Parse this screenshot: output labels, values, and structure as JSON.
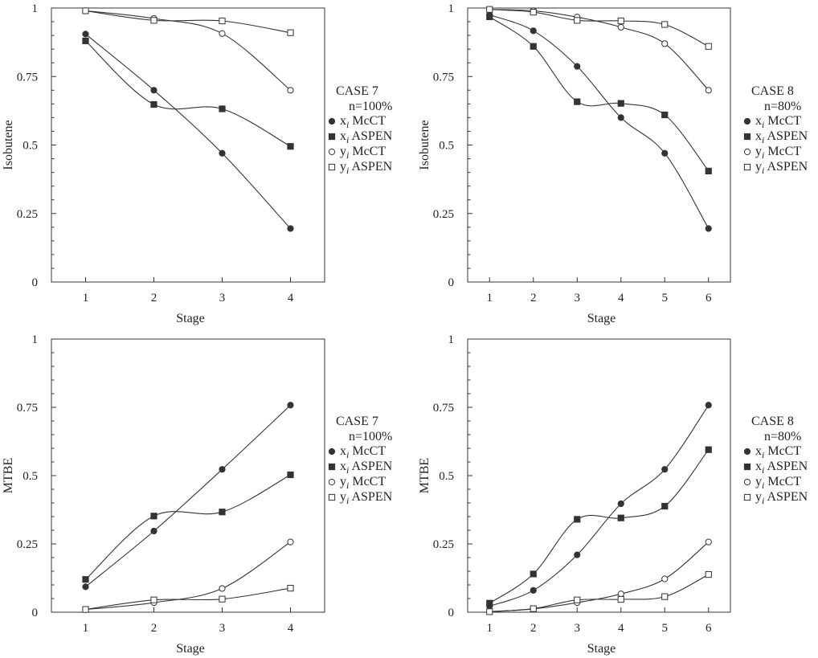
{
  "chart_data": [
    {
      "type": "line",
      "panel": "case7-isobutene",
      "xlabel": "Stage",
      "ylabel": "Isobutene",
      "x": [
        1,
        2,
        3,
        4
      ],
      "xlim": [
        0.5,
        4.5
      ],
      "ylim": [
        0,
        1
      ],
      "yticks": [
        {
          "v": 0,
          "label": "0"
        },
        {
          "v": 0.25,
          "label": "0.25"
        },
        {
          "v": 0.5,
          "label": "0.5"
        },
        {
          "v": 0.75,
          "label": "0.75"
        },
        {
          "v": 1,
          "label": "1"
        }
      ],
      "legend_title": [
        "CASE 7",
        "n=100%"
      ],
      "series": [
        {
          "name": "x_i McCT",
          "var": "x",
          "sub": "i",
          "method": "McCT",
          "marker": "circle-filled",
          "values": [
            0.905,
            0.7,
            0.47,
            0.195
          ]
        },
        {
          "name": "x_i ASPEN",
          "var": "x",
          "sub": "i",
          "method": "ASPEN",
          "marker": "square-filled",
          "values": [
            0.88,
            0.648,
            0.632,
            0.495
          ]
        },
        {
          "name": "y_i McCT",
          "var": "y",
          "sub": "i",
          "method": "McCT",
          "marker": "circle-open",
          "values": [
            0.99,
            0.962,
            0.907,
            0.7
          ]
        },
        {
          "name": "y_i ASPEN",
          "var": "y",
          "sub": "i",
          "method": "ASPEN",
          "marker": "square-open",
          "values": [
            0.99,
            0.955,
            0.953,
            0.91
          ]
        }
      ]
    },
    {
      "type": "line",
      "panel": "case8-isobutene",
      "xlabel": "Stage",
      "ylabel": "Isobutene",
      "x": [
        1,
        2,
        3,
        4,
        5,
        6
      ],
      "xlim": [
        0.5,
        6.5
      ],
      "ylim": [
        0,
        1
      ],
      "yticks": [
        {
          "v": 0,
          "label": "0"
        },
        {
          "v": 0.25,
          "label": "0.25"
        },
        {
          "v": 0.5,
          "label": "0.5"
        },
        {
          "v": 0.75,
          "label": "0.75"
        },
        {
          "v": 1,
          "label": "1"
        }
      ],
      "legend_title": [
        "CASE 8",
        "n=80%"
      ],
      "series": [
        {
          "name": "x_i McCT",
          "var": "x",
          "sub": "i",
          "method": "McCT",
          "marker": "circle-filled",
          "values": [
            0.975,
            0.917,
            0.787,
            0.6,
            0.47,
            0.195
          ]
        },
        {
          "name": "x_i ASPEN",
          "var": "x",
          "sub": "i",
          "method": "ASPEN",
          "marker": "square-filled",
          "values": [
            0.968,
            0.86,
            0.658,
            0.652,
            0.61,
            0.405
          ]
        },
        {
          "name": "y_i McCT",
          "var": "y",
          "sub": "i",
          "method": "McCT",
          "marker": "circle-open",
          "values": [
            0.995,
            0.99,
            0.967,
            0.93,
            0.87,
            0.7
          ]
        },
        {
          "name": "y_i ASPEN",
          "var": "y",
          "sub": "i",
          "method": "ASPEN",
          "marker": "square-open",
          "values": [
            0.995,
            0.985,
            0.955,
            0.953,
            0.94,
            0.86
          ]
        }
      ]
    },
    {
      "type": "line",
      "panel": "case7-mtbe",
      "xlabel": "Stage",
      "ylabel": "MTBE",
      "x": [
        1,
        2,
        3,
        4
      ],
      "xlim": [
        0.5,
        4.5
      ],
      "ylim": [
        0,
        1
      ],
      "yticks": [
        {
          "v": 0,
          "label": "0"
        },
        {
          "v": 0.25,
          "label": "0.25"
        },
        {
          "v": 0.5,
          "label": "0.5"
        },
        {
          "v": 0.75,
          "label": "0.75"
        },
        {
          "v": 1,
          "label": "1"
        }
      ],
      "legend_title": [
        "CASE 7",
        "n=100%"
      ],
      "series": [
        {
          "name": "x_i McCT",
          "var": "x",
          "sub": "i",
          "method": "McCT",
          "marker": "circle-filled",
          "values": [
            0.093,
            0.297,
            0.523,
            0.758
          ]
        },
        {
          "name": "x_i ASPEN",
          "var": "x",
          "sub": "i",
          "method": "ASPEN",
          "marker": "square-filled",
          "values": [
            0.12,
            0.352,
            0.367,
            0.503
          ]
        },
        {
          "name": "y_i McCT",
          "var": "y",
          "sub": "i",
          "method": "McCT",
          "marker": "circle-open",
          "values": [
            0.01,
            0.035,
            0.087,
            0.257
          ]
        },
        {
          "name": "y_i ASPEN",
          "var": "y",
          "sub": "i",
          "method": "ASPEN",
          "marker": "square-open",
          "values": [
            0.01,
            0.045,
            0.048,
            0.088
          ]
        }
      ]
    },
    {
      "type": "line",
      "panel": "case8-mtbe",
      "xlabel": "Stage",
      "ylabel": "MTBE",
      "x": [
        1,
        2,
        3,
        4,
        5,
        6
      ],
      "xlim": [
        0.5,
        6.5
      ],
      "ylim": [
        0,
        1
      ],
      "yticks": [
        {
          "v": 0,
          "label": "0"
        },
        {
          "v": 0.25,
          "label": "0.25"
        },
        {
          "v": 0.5,
          "label": "0.5"
        },
        {
          "v": 0.75,
          "label": "0.75"
        },
        {
          "v": 1,
          "label": "1"
        }
      ],
      "legend_title": [
        "CASE 8",
        "n=80%"
      ],
      "series": [
        {
          "name": "x_i McCT",
          "var": "x",
          "sub": "i",
          "method": "McCT",
          "marker": "circle-filled",
          "values": [
            0.022,
            0.08,
            0.21,
            0.397,
            0.523,
            0.758
          ]
        },
        {
          "name": "x_i ASPEN",
          "var": "x",
          "sub": "i",
          "method": "ASPEN",
          "marker": "square-filled",
          "values": [
            0.033,
            0.14,
            0.34,
            0.345,
            0.388,
            0.595
          ]
        },
        {
          "name": "y_i McCT",
          "var": "y",
          "sub": "i",
          "method": "McCT",
          "marker": "circle-open",
          "values": [
            0.002,
            0.012,
            0.035,
            0.067,
            0.122,
            0.257
          ]
        },
        {
          "name": "y_i ASPEN",
          "var": "y",
          "sub": "i",
          "method": "ASPEN",
          "marker": "square-open",
          "values": [
            0.002,
            0.013,
            0.045,
            0.047,
            0.057,
            0.138
          ]
        }
      ]
    }
  ]
}
